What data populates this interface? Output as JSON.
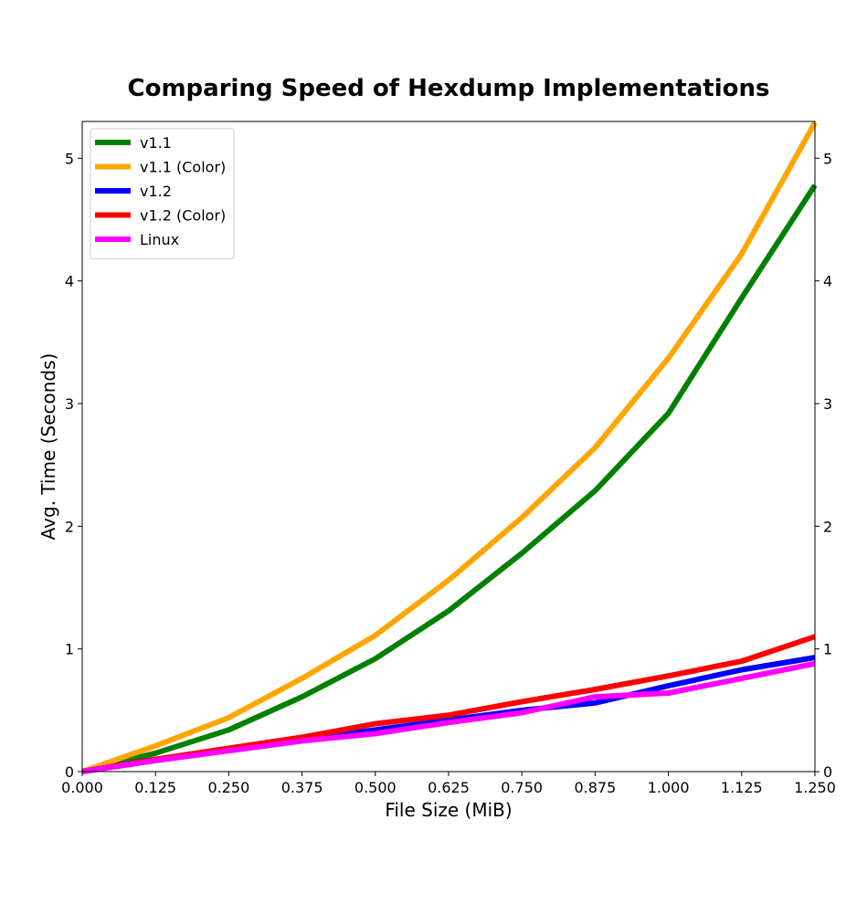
{
  "chart_data": {
    "type": "line",
    "title": "Comparing Speed of Hexdump Implementations",
    "xlabel": "File Size (MiB)",
    "ylabel": "Avg. Time (Seconds)",
    "xlim": [
      0,
      1.25
    ],
    "ylim": [
      0,
      5.3
    ],
    "x_ticks": [
      "0.000",
      "0.125",
      "0.250",
      "0.375",
      "0.500",
      "0.625",
      "0.750",
      "0.875",
      "1.000",
      "1.125",
      "1.250"
    ],
    "y_ticks": [
      "0",
      "1",
      "2",
      "3",
      "4",
      "5"
    ],
    "y_ticks_right": true,
    "grid": false,
    "legend_position": "top-left",
    "x": [
      0,
      0.125,
      0.25,
      0.375,
      0.5,
      0.625,
      0.75,
      0.875,
      1.0,
      1.125,
      1.25
    ],
    "series": [
      {
        "name": "v1.1",
        "color": "#008000",
        "values": [
          0,
          0.15,
          0.34,
          0.61,
          0.92,
          1.31,
          1.78,
          2.29,
          2.92,
          3.86,
          4.78
        ]
      },
      {
        "name": "v1.1 (Color)",
        "color": "#FFA500",
        "values": [
          0,
          0.21,
          0.44,
          0.76,
          1.11,
          1.56,
          2.07,
          2.64,
          3.37,
          4.22,
          5.29
        ]
      },
      {
        "name": "v1.2",
        "color": "#0000FF",
        "values": [
          0,
          0.1,
          0.18,
          0.26,
          0.34,
          0.42,
          0.5,
          0.56,
          0.7,
          0.83,
          0.93
        ]
      },
      {
        "name": "v1.2 (Color)",
        "color": "#FF0000",
        "values": [
          0,
          0.1,
          0.19,
          0.28,
          0.39,
          0.46,
          0.57,
          0.67,
          0.78,
          0.9,
          1.1
        ]
      },
      {
        "name": "Linux",
        "color": "#FF00FF",
        "values": [
          0,
          0.09,
          0.17,
          0.25,
          0.31,
          0.4,
          0.48,
          0.61,
          0.64,
          0.76,
          0.88
        ]
      }
    ]
  }
}
